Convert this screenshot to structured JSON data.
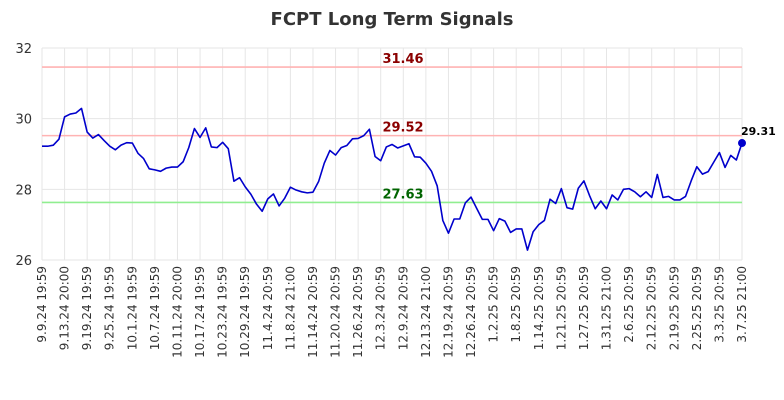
{
  "chart_data": {
    "type": "line",
    "title": "FCPT Long Term Signals",
    "xlabel": "",
    "ylabel": "",
    "ylim": [
      26,
      32
    ],
    "yticks": [
      "26",
      "28",
      "30",
      "32"
    ],
    "grid": true,
    "xtick_labels": [
      "9.9.24 19:59",
      "9.13.24 20:00",
      "9.19.24 19:59",
      "9.25.24 19:59",
      "10.1.24 19:59",
      "10.7.24 19:59",
      "10.11.24 20:00",
      "10.17.24 19:59",
      "10.23.24 19:59",
      "10.29.24 19:59",
      "11.4.24 20:59",
      "11.8.24 21:00",
      "11.14.24 20:59",
      "11.20.24 20:59",
      "11.26.24 20:59",
      "12.3.24 20:59",
      "12.9.24 20:59",
      "12.13.24 21:00",
      "12.19.24 20:59",
      "12.26.24 20:59",
      "1.2.25 20:59",
      "1.8.25 20:59",
      "1.14.25 20:59",
      "1.21.25 20:59",
      "1.27.25 20:59",
      "1.31.25 21:00",
      "2.6.25 20:59",
      "2.12.25 20:59",
      "2.19.25 20:59",
      "2.25.25 20:59",
      "3.3.25 20:59",
      "3.7.25 21:00"
    ],
    "reference_lines": [
      {
        "value": 31.46,
        "label": "31.46",
        "color": "#ffb3b3",
        "label_color": "#8b0000"
      },
      {
        "value": 29.52,
        "label": "29.52",
        "color": "#ffb3b3",
        "label_color": "#8b0000"
      },
      {
        "value": 27.63,
        "label": "27.63",
        "color": "#90ee90",
        "label_color": "#006400"
      }
    ],
    "series": [
      {
        "color": "#0000cc",
        "values": [
          29.22,
          29.22,
          29.25,
          29.42,
          30.05,
          30.13,
          30.16,
          30.29,
          29.62,
          29.45,
          29.55,
          29.38,
          29.22,
          29.12,
          29.25,
          29.32,
          29.31,
          29.02,
          28.87,
          28.58,
          28.55,
          28.51,
          28.6,
          28.63,
          28.63,
          28.78,
          29.18,
          29.72,
          29.47,
          29.74,
          29.2,
          29.18,
          29.33,
          29.15,
          28.23,
          28.33,
          28.07,
          27.86,
          27.58,
          27.38,
          27.73,
          27.87,
          27.53,
          27.75,
          28.06,
          27.98,
          27.93,
          27.9,
          27.92,
          28.22,
          28.74,
          29.1,
          28.97,
          29.18,
          29.24,
          29.43,
          29.44,
          29.52,
          29.7,
          28.93,
          28.81,
          29.2,
          29.27,
          29.17,
          29.23,
          29.29,
          28.92,
          28.91,
          28.74,
          28.51,
          28.1,
          27.12,
          26.76,
          27.16,
          27.16,
          27.62,
          27.78,
          27.46,
          27.15,
          27.15,
          26.83,
          27.17,
          27.1,
          26.78,
          26.88,
          26.88,
          26.28,
          26.8,
          27.0,
          27.12,
          27.72,
          27.6,
          28.02,
          27.48,
          27.44,
          28.03,
          28.24,
          27.82,
          27.45,
          27.67,
          27.45,
          27.84,
          27.7,
          28.0,
          28.02,
          27.93,
          27.79,
          27.93,
          27.77,
          28.42,
          27.77,
          27.8,
          27.7,
          27.7,
          27.8,
          28.24,
          28.64,
          28.43,
          28.5,
          28.77,
          29.04,
          28.62,
          28.96,
          28.83,
          29.31
        ]
      }
    ],
    "last_point_label": "29.31"
  }
}
